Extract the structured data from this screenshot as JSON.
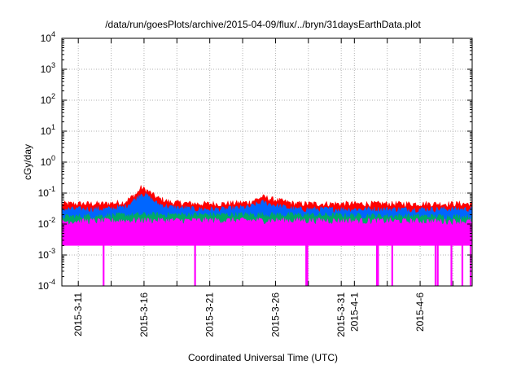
{
  "chart_data": {
    "type": "area",
    "title": "/data/run/goesPlots/archive/2015-04-09/flux/../bryn/31daysEarthData.plot",
    "xlabel": "Coordinated Universal Time (UTC)",
    "ylabel": "cGy/day",
    "y_scale": "log",
    "ylim": [
      0.0001,
      10000
    ],
    "xlim": [
      "2015-03-09T18:00",
      "2015-04-09T23:00"
    ],
    "grid": true,
    "legend": "none",
    "y_ticks": [
      {
        "value": 0.0001,
        "base": "10",
        "exp": "-4"
      },
      {
        "value": 0.001,
        "base": "10",
        "exp": "-3"
      },
      {
        "value": 0.01,
        "base": "10",
        "exp": "-2"
      },
      {
        "value": 0.1,
        "base": "10",
        "exp": "-1"
      },
      {
        "value": 1,
        "base": "10",
        "exp": "0"
      },
      {
        "value": 10,
        "base": "10",
        "exp": "1"
      },
      {
        "value": 100,
        "base": "10",
        "exp": "2"
      },
      {
        "value": 1000,
        "base": "10",
        "exp": "3"
      },
      {
        "value": 10000,
        "base": "10",
        "exp": "4"
      }
    ],
    "x_ticks": [
      {
        "date": "2015-03-11",
        "label": "2015-3-11"
      },
      {
        "date": "2015-03-16",
        "label": "2015-3-16"
      },
      {
        "date": "2015-03-21",
        "label": "2015-3-21"
      },
      {
        "date": "2015-03-26",
        "label": "2015-3-26"
      },
      {
        "date": "2015-03-31",
        "label": "2015-3-31"
      },
      {
        "date": "2015-04-01",
        "label": "2015-4-1"
      },
      {
        "date": "2015-04-06",
        "label": "2015-4-6"
      }
    ],
    "x_minor_grid": [
      "2015-03-13T12:00",
      "2015-03-18T12:00",
      "2015-03-23T12:00",
      "2015-03-28T12:00",
      "2015-04-03T12:00",
      "2015-04-08T12:00"
    ],
    "series": [
      {
        "color": "#ff0000",
        "x": [
          "2015-03-09T18:00",
          "2015-03-11",
          "2015-03-13",
          "2015-03-14T12:00",
          "2015-03-15T12:00",
          "2015-03-15T18:00",
          "2015-03-16T06:00",
          "2015-03-17",
          "2015-03-18",
          "2015-03-20",
          "2015-03-22",
          "2015-03-24",
          "2015-03-25",
          "2015-03-26",
          "2015-03-27T12:00",
          "2015-03-29",
          "2015-04-01",
          "2015-04-03",
          "2015-04-05",
          "2015-04-07",
          "2015-04-09T23:00"
        ],
        "values": [
          0.045,
          0.045,
          0.045,
          0.05,
          0.1,
          0.15,
          0.12,
          0.07,
          0.05,
          0.045,
          0.045,
          0.05,
          0.075,
          0.06,
          0.045,
          0.045,
          0.045,
          0.045,
          0.045,
          0.045,
          0.045
        ]
      },
      {
        "color": "#0066ff",
        "x": [
          "2015-03-09T18:00",
          "2015-03-11",
          "2015-03-13",
          "2015-03-14T12:00",
          "2015-03-15T12:00",
          "2015-03-15T18:00",
          "2015-03-16T06:00",
          "2015-03-17",
          "2015-03-18",
          "2015-03-20",
          "2015-03-22",
          "2015-03-24",
          "2015-03-25",
          "2015-03-26",
          "2015-03-27T12:00",
          "2015-03-29",
          "2015-04-01",
          "2015-04-03",
          "2015-04-05",
          "2015-04-07",
          "2015-04-09T23:00"
        ],
        "values": [
          0.03,
          0.03,
          0.03,
          0.035,
          0.07,
          0.1,
          0.08,
          0.045,
          0.035,
          0.03,
          0.03,
          0.035,
          0.05,
          0.04,
          0.03,
          0.03,
          0.03,
          0.03,
          0.03,
          0.03,
          0.03
        ]
      },
      {
        "color": "#00aa66",
        "x": [
          "2015-03-09T18:00",
          "2015-03-16",
          "2015-03-26",
          "2015-04-09T23:00"
        ],
        "values": [
          0.017,
          0.02,
          0.02,
          0.017
        ]
      },
      {
        "color": "#ff00ff",
        "x": [
          "2015-03-09T18:00",
          "2015-03-16",
          "2015-03-26",
          "2015-04-09T23:00"
        ],
        "values": [
          0.012,
          0.013,
          0.013,
          0.012
        ]
      }
    ],
    "dropouts": [
      "2015-03-12T22:00",
      "2015-03-19T21:00",
      "2015-03-28T08:00",
      "2015-03-28T10:00",
      "2015-04-02T17:00",
      "2015-04-02T19:00",
      "2015-04-03T21:00",
      "2015-04-07T04:00",
      "2015-04-07T08:00",
      "2015-04-08T09:00",
      "2015-04-09T05:00",
      "2015-04-09T20:00"
    ]
  }
}
